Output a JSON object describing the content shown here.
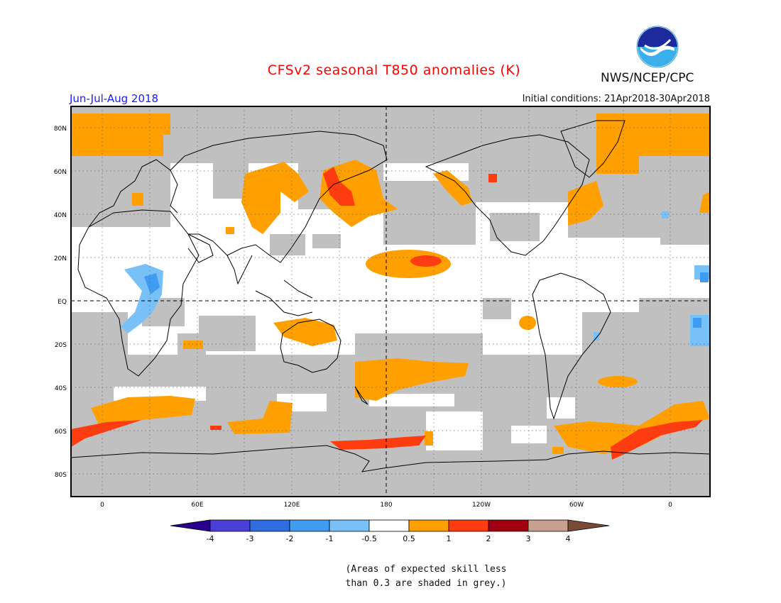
{
  "title": "CFSv2 seasonal T850 anomalies (K)",
  "period": "Jun-Jul-Aug 2018",
  "initial_conditions": "Initial conditions: 21Apr2018-30Apr2018",
  "agency": "NWS/NCEP/CPC",
  "logo_text": "NOAA",
  "colors": {
    "title": "#ff0000",
    "period": "#1a1aff",
    "skill_grey": "#c0c0c0",
    "land_outline": "#000000"
  },
  "lat_labels": [
    "80N",
    "60N",
    "40N",
    "20N",
    "EQ",
    "20S",
    "40S",
    "60S",
    "80S"
  ],
  "lon_labels": [
    "0",
    "60E",
    "120E",
    "180",
    "120W",
    "60W",
    "0"
  ],
  "legend": {
    "colors": [
      "#28008c",
      "#4a40d8",
      "#2f6ee0",
      "#3f9cf0",
      "#78c0f8",
      "#ffffff",
      "#ff9f00",
      "#ff3c10",
      "#a00010",
      "#c8a090",
      "#7a4a38"
    ],
    "labels": [
      "-4",
      "-3",
      "-2",
      "-1",
      "-0.5",
      "0.5",
      "1",
      "2",
      "3",
      "4"
    ]
  },
  "note_lines": [
    "(Areas of expected skill less",
    "than 0.3 are shaded in grey.)"
  ]
}
